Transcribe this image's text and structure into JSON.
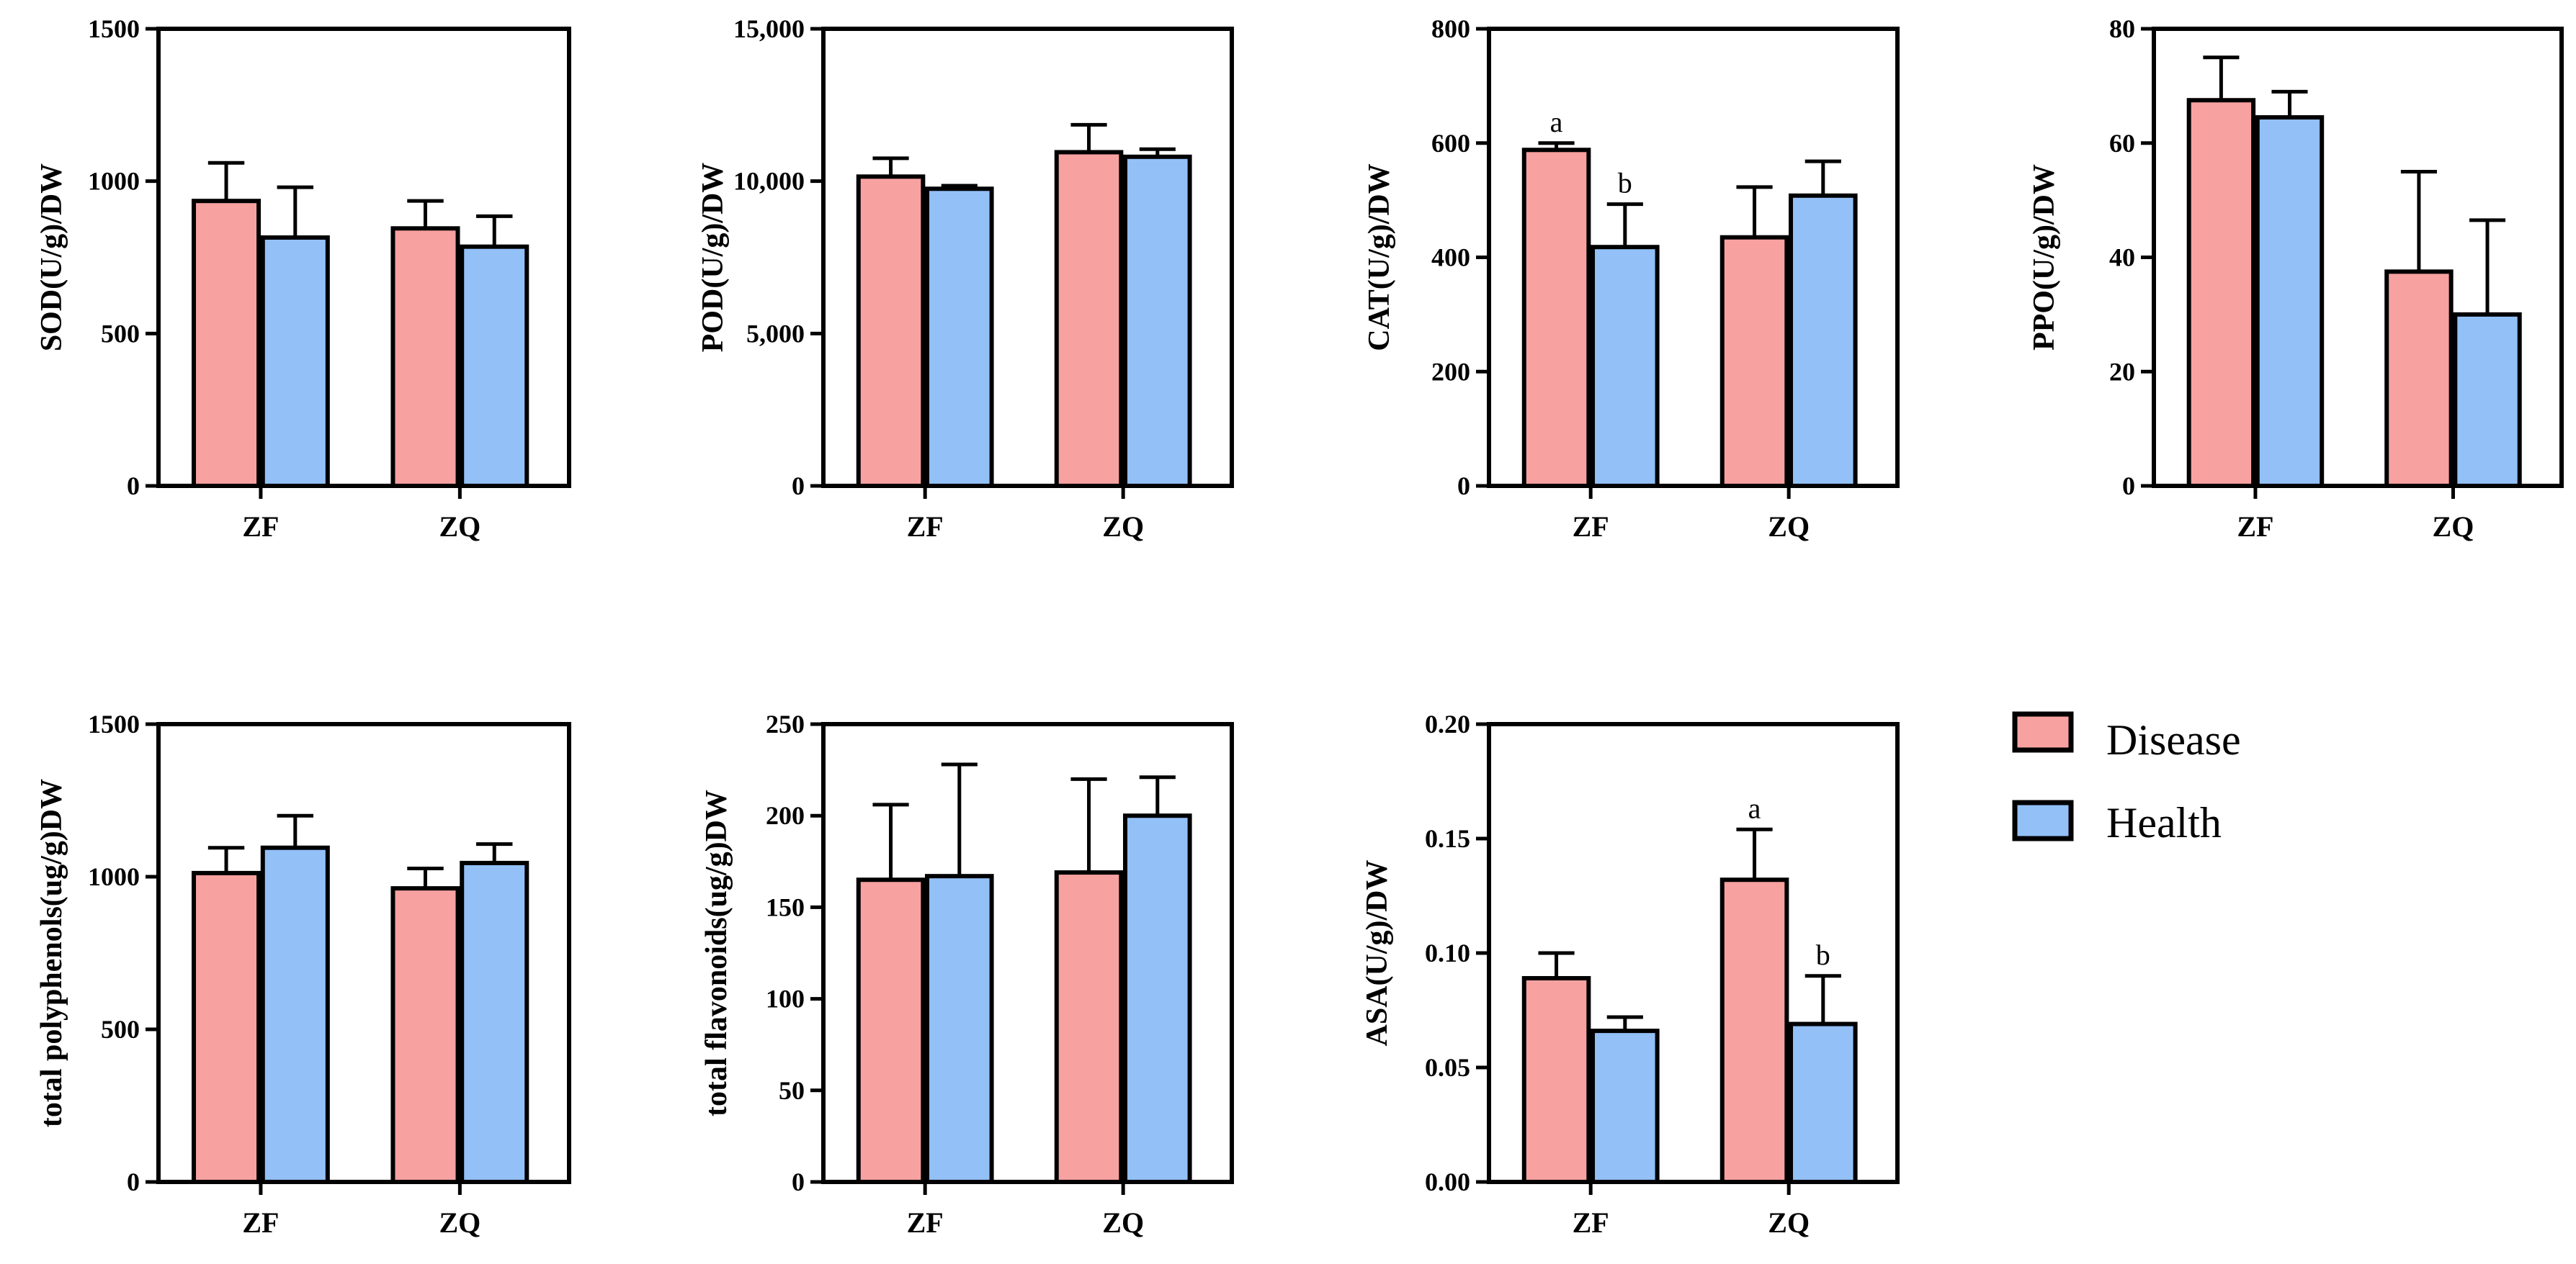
{
  "legend": [
    {
      "label": "Disease",
      "color": "#f8a1a1"
    },
    {
      "label": "Health",
      "color": "#93c0f7"
    }
  ],
  "chart_data": [
    {
      "id": "sod",
      "type": "bar",
      "ylabel": "SOD(U/g)/DW",
      "categories": [
        "ZF",
        "ZQ"
      ],
      "ylim": [
        0,
        1500
      ],
      "yticks": [
        0,
        500,
        1000,
        1500
      ],
      "ytick_labels": [
        "0",
        "500",
        "1000",
        "1500"
      ],
      "series": [
        {
          "name": "Disease",
          "values": [
            935,
            845
          ],
          "errors": [
            125,
            90
          ]
        },
        {
          "name": "Health",
          "values": [
            815,
            785
          ],
          "errors": [
            165,
            100
          ]
        }
      ],
      "annotations": []
    },
    {
      "id": "pod",
      "type": "bar",
      "ylabel": "POD(U/g)/DW",
      "categories": [
        "ZF",
        "ZQ"
      ],
      "ylim": [
        0,
        15000
      ],
      "yticks": [
        0,
        5000,
        10000,
        15000
      ],
      "ytick_labels": [
        "0",
        "5,000",
        "10,000",
        "15,000"
      ],
      "series": [
        {
          "name": "Disease",
          "values": [
            10150,
            10950
          ],
          "errors": [
            600,
            900
          ]
        },
        {
          "name": "Health",
          "values": [
            9750,
            10800
          ],
          "errors": [
            100,
            250
          ]
        }
      ],
      "annotations": []
    },
    {
      "id": "cat",
      "type": "bar",
      "ylabel": "CAT(U/g)/DW",
      "categories": [
        "ZF",
        "ZQ"
      ],
      "ylim": [
        0,
        800
      ],
      "yticks": [
        0,
        200,
        400,
        600,
        800
      ],
      "ytick_labels": [
        "0",
        "200",
        "400",
        "600",
        "800"
      ],
      "series": [
        {
          "name": "Disease",
          "values": [
            588,
            435
          ],
          "errors": [
            12,
            88
          ]
        },
        {
          "name": "Health",
          "values": [
            418,
            508
          ],
          "errors": [
            75,
            60
          ]
        }
      ],
      "annotations": [
        {
          "category": 0,
          "series": 0,
          "text": "a"
        },
        {
          "category": 0,
          "series": 1,
          "text": "b"
        }
      ]
    },
    {
      "id": "ppo",
      "type": "bar",
      "ylabel": "PPO(U/g)/DW",
      "categories": [
        "ZF",
        "ZQ"
      ],
      "ylim": [
        0,
        80
      ],
      "yticks": [
        0,
        20,
        40,
        60,
        80
      ],
      "ytick_labels": [
        "0",
        "20",
        "40",
        "60",
        "80"
      ],
      "series": [
        {
          "name": "Disease",
          "values": [
            67.5,
            37.5
          ],
          "errors": [
            7.5,
            17.5
          ]
        },
        {
          "name": "Health",
          "values": [
            64.5,
            30
          ],
          "errors": [
            4.5,
            16.5
          ]
        }
      ],
      "annotations": []
    },
    {
      "id": "polyphenols",
      "type": "bar",
      "ylabel": "total polyphenols(ug/g)DW",
      "categories": [
        "ZF",
        "ZQ"
      ],
      "ylim": [
        0,
        1500
      ],
      "yticks": [
        0,
        500,
        1000,
        1500
      ],
      "ytick_labels": [
        "0",
        "500",
        "1000",
        "1500"
      ],
      "series": [
        {
          "name": "Disease",
          "values": [
            1012,
            962
          ],
          "errors": [
            83,
            65
          ]
        },
        {
          "name": "Health",
          "values": [
            1095,
            1045
          ],
          "errors": [
            105,
            62
          ]
        }
      ],
      "annotations": []
    },
    {
      "id": "flavonoids",
      "type": "bar",
      "ylabel": "total flavonoids(ug/g)DW",
      "categories": [
        "ZF",
        "ZQ"
      ],
      "ylim": [
        0,
        250
      ],
      "yticks": [
        0,
        50,
        100,
        150,
        200,
        250
      ],
      "ytick_labels": [
        "0",
        "50",
        "100",
        "150",
        "200",
        "250"
      ],
      "series": [
        {
          "name": "Disease",
          "values": [
            165,
            169
          ],
          "errors": [
            41,
            51
          ]
        },
        {
          "name": "Health",
          "values": [
            167,
            200
          ],
          "errors": [
            61,
            21
          ]
        }
      ],
      "annotations": []
    },
    {
      "id": "asa",
      "type": "bar",
      "ylabel": "ASA(U/g)/DW",
      "categories": [
        "ZF",
        "ZQ"
      ],
      "ylim": [
        0,
        0.2
      ],
      "yticks": [
        0,
        0.05,
        0.1,
        0.15,
        0.2
      ],
      "ytick_labels": [
        "0.00",
        "0.05",
        "0.10",
        "0.15",
        "0.20"
      ],
      "series": [
        {
          "name": "Disease",
          "values": [
            0.089,
            0.132
          ],
          "errors": [
            0.011,
            0.022
          ]
        },
        {
          "name": "Health",
          "values": [
            0.066,
            0.069
          ],
          "errors": [
            0.006,
            0.021
          ]
        }
      ],
      "annotations": [
        {
          "category": 1,
          "series": 0,
          "text": "a"
        },
        {
          "category": 1,
          "series": 1,
          "text": "b"
        }
      ]
    }
  ]
}
